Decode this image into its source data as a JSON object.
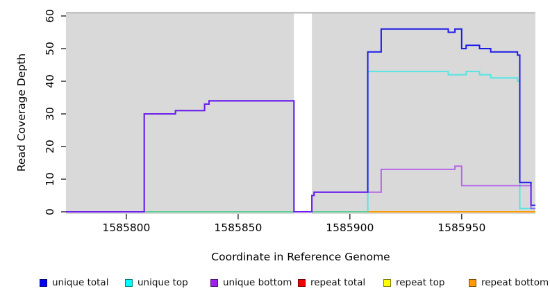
{
  "chart_data": {
    "type": "line",
    "subtype": "step",
    "title": "",
    "xlabel": "Coordinate in Reference Genome",
    "ylabel": "Read Coverage Depth",
    "xlim": [
      1585773,
      1585983
    ],
    "ylim": [
      0,
      60
    ],
    "x_ticks": [
      "1585800",
      "1585850",
      "1585900",
      "1585950"
    ],
    "y_ticks": [
      "0",
      "10",
      "20",
      "30",
      "40",
      "50",
      "60"
    ],
    "grid": false,
    "legend_position": "bottom",
    "background": "#d9d9d9",
    "gap_region": {
      "from": 1585875,
      "to": 1585883,
      "color": "#ffffff"
    },
    "series": [
      {
        "name": "repeat total",
        "color": "#ee0000",
        "opacity": 1,
        "points": [
          [
            1585773,
            0
          ]
        ]
      },
      {
        "name": "repeat top",
        "color": "#ffff00",
        "opacity": 1,
        "points": [
          [
            1585773,
            0
          ]
        ]
      },
      {
        "name": "repeat bottom",
        "color": "#ff9900",
        "opacity": 1,
        "points": [
          [
            1585773,
            0
          ]
        ]
      },
      {
        "name": "unique top",
        "color": "#00eeee",
        "opacity": 0.62,
        "points": [
          [
            1585773,
            0
          ],
          [
            1585908,
            43
          ],
          [
            1585944,
            42
          ],
          [
            1585952,
            43
          ],
          [
            1585958,
            42
          ],
          [
            1585963,
            41
          ],
          [
            1585975,
            40
          ],
          [
            1585976,
            1
          ]
        ]
      },
      {
        "name": "unique total",
        "color": "#1c1ce8",
        "opacity": 1,
        "points": [
          [
            1585773,
            0
          ],
          [
            1585808,
            30
          ],
          [
            1585822,
            31
          ],
          [
            1585835,
            33
          ],
          [
            1585837,
            34
          ],
          [
            1585875,
            0
          ],
          [
            1585883,
            5
          ],
          [
            1585884,
            6
          ],
          [
            1585908,
            49
          ],
          [
            1585914,
            56
          ],
          [
            1585944,
            55
          ],
          [
            1585947,
            56
          ],
          [
            1585950,
            50
          ],
          [
            1585952,
            51
          ],
          [
            1585958,
            50
          ],
          [
            1585963,
            49
          ],
          [
            1585975,
            48
          ],
          [
            1585976,
            9
          ],
          [
            1585981,
            2
          ]
        ]
      },
      {
        "name": "unique bottom",
        "color": "#a020f0",
        "opacity": 0.62,
        "points": [
          [
            1585773,
            0
          ],
          [
            1585808,
            30
          ],
          [
            1585822,
            31
          ],
          [
            1585835,
            33
          ],
          [
            1585837,
            34
          ],
          [
            1585875,
            0
          ],
          [
            1585883,
            5
          ],
          [
            1585884,
            6
          ],
          [
            1585914,
            13
          ],
          [
            1585947,
            14
          ],
          [
            1585950,
            8
          ],
          [
            1585981,
            1
          ]
        ]
      }
    ],
    "legend": [
      {
        "label": "unique total",
        "color": "#0000ee"
      },
      {
        "label": "unique top",
        "color": "#00ffff"
      },
      {
        "label": "unique bottom",
        "color": "#a020f0"
      },
      {
        "label": "repeat total",
        "color": "#ee0000"
      },
      {
        "label": "repeat top",
        "color": "#ffff00"
      },
      {
        "label": "repeat bottom",
        "color": "#ff9900"
      }
    ]
  }
}
